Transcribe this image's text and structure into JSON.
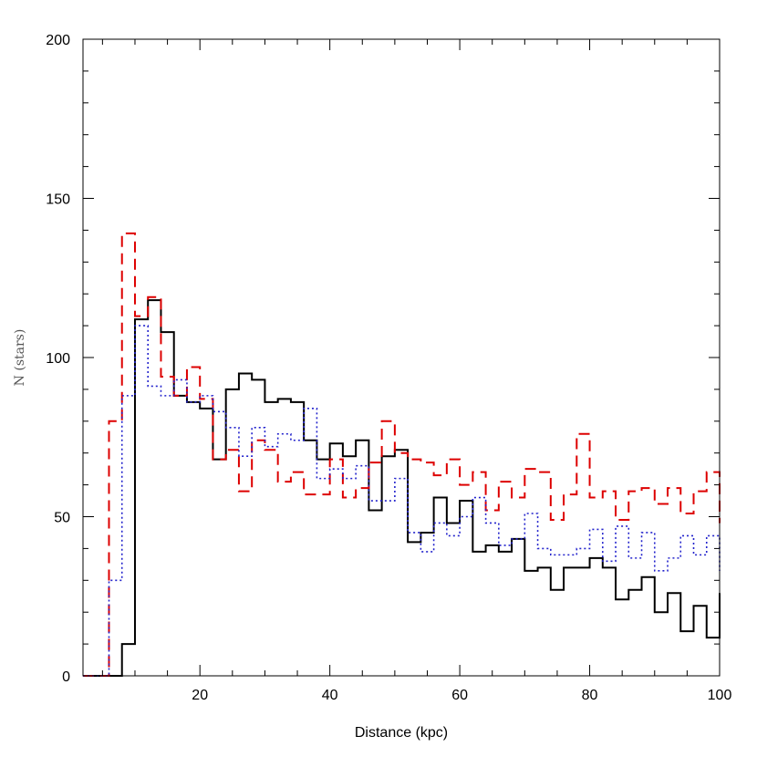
{
  "chart_data": {
    "type": "line",
    "subtype": "step-histogram",
    "xlabel": "Distance (kpc)",
    "ylabel": "N (stars)",
    "xlim": [
      2,
      100
    ],
    "ylim": [
      0,
      200
    ],
    "x_ticks": [
      "20",
      "40",
      "60",
      "80",
      "100"
    ],
    "y_ticks": [
      "0",
      "50",
      "100",
      "150",
      "200"
    ],
    "bin_edges": [
      2,
      4,
      6,
      8,
      10,
      12,
      14,
      16,
      18,
      20,
      22,
      24,
      26,
      28,
      30,
      32,
      34,
      36,
      38,
      40,
      42,
      44,
      46,
      48,
      50,
      52,
      54,
      56,
      58,
      60,
      62,
      64,
      66,
      68,
      70,
      72,
      74,
      76,
      78,
      80,
      82,
      84,
      86,
      88,
      90,
      92,
      94,
      96,
      98,
      100
    ],
    "series": [
      {
        "color": "#000000",
        "style": "solid",
        "values": [
          0,
          0,
          0,
          10,
          112,
          118,
          108,
          88,
          86,
          84,
          68,
          90,
          95,
          93,
          86,
          87,
          86,
          74,
          68,
          73,
          69,
          74,
          52,
          69,
          71,
          42,
          45,
          56,
          48,
          55,
          39,
          41,
          39,
          43,
          33,
          34,
          27,
          34,
          34,
          37,
          34,
          24,
          27,
          31,
          20,
          26,
          14,
          22,
          12,
          26
        ]
      },
      {
        "color": "#dd0000",
        "style": "dashed",
        "values": [
          0,
          0,
          80,
          139,
          113,
          119,
          94,
          88,
          97,
          87,
          68,
          71,
          58,
          74,
          71,
          61,
          64,
          57,
          57,
          68,
          56,
          59,
          67,
          80,
          70,
          68,
          67,
          63,
          68,
          60,
          64,
          52,
          61,
          56,
          65,
          64,
          49,
          57,
          76,
          56,
          58,
          49,
          58,
          59,
          54,
          59,
          51,
          58,
          64,
          48
        ]
      },
      {
        "color": "#2222cc",
        "style": "dotted",
        "values": [
          0,
          0,
          30,
          88,
          110,
          91,
          88,
          93,
          86,
          88,
          83,
          78,
          69,
          78,
          72,
          76,
          74,
          84,
          62,
          65,
          62,
          66,
          55,
          55,
          62,
          45,
          39,
          48,
          44,
          50,
          56,
          48,
          41,
          43,
          51,
          40,
          38,
          38,
          40,
          46,
          36,
          47,
          37,
          45,
          33,
          37,
          44,
          38,
          44,
          33
        ]
      }
    ]
  }
}
